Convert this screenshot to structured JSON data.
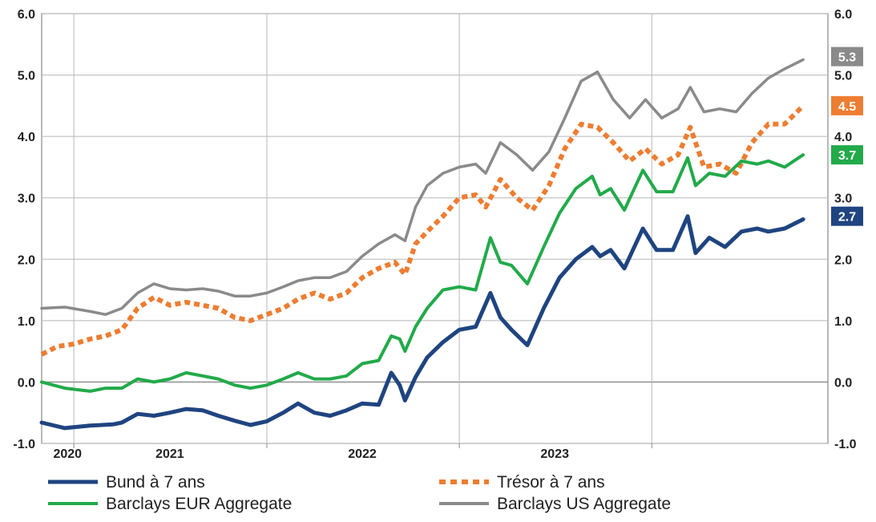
{
  "chart_data": {
    "type": "line",
    "x_axis": {
      "type": "date",
      "range": [
        "2019-11-01",
        "2023-12-01"
      ],
      "tick_labels": [
        "2020",
        "2021",
        "2022",
        "2023"
      ]
    },
    "y_axis_left": {
      "range": [
        -1.0,
        6.0
      ],
      "tick_labels": [
        "6.0",
        "5.0",
        "4.0",
        "3.0",
        "2.0",
        "1.0",
        "0.0",
        "-1.0"
      ]
    },
    "y_axis_right": {
      "range": [
        -1.0,
        6.0
      ],
      "tick_labels": [
        "6.0",
        "5.0",
        "4.0",
        "3.0",
        "2.0",
        "1.0",
        "0.0",
        "-1.0"
      ]
    },
    "grid": true,
    "legend_position": "bottom",
    "series": [
      {
        "name": "Bund à 7 ans",
        "color": "#1f4480",
        "style": "solid",
        "end_label": "2.7",
        "points": [
          [
            "2019-11-01",
            -0.66
          ],
          [
            "2019-12-15",
            -0.75
          ],
          [
            "2020-02-01",
            -0.71
          ],
          [
            "2020-03-15",
            -0.69
          ],
          [
            "2020-04-01",
            -0.66
          ],
          [
            "2020-05-01",
            -0.52
          ],
          [
            "2020-06-01",
            -0.55
          ],
          [
            "2020-07-01",
            -0.5
          ],
          [
            "2020-08-01",
            -0.44
          ],
          [
            "2020-09-01",
            -0.46
          ],
          [
            "2020-10-01",
            -0.55
          ],
          [
            "2020-11-01",
            -0.63
          ],
          [
            "2020-12-01",
            -0.7
          ],
          [
            "2021-01-01",
            -0.64
          ],
          [
            "2021-02-01",
            -0.5
          ],
          [
            "2021-03-01",
            -0.35
          ],
          [
            "2021-04-01",
            -0.5
          ],
          [
            "2021-05-01",
            -0.55
          ],
          [
            "2021-06-01",
            -0.46
          ],
          [
            "2021-07-01",
            -0.35
          ],
          [
            "2021-08-01",
            -0.37
          ],
          [
            "2021-08-25",
            0.15
          ],
          [
            "2021-09-10",
            -0.05
          ],
          [
            "2021-09-20",
            -0.3
          ],
          [
            "2021-10-10",
            0.08
          ],
          [
            "2021-11-01",
            0.4
          ],
          [
            "2021-12-01",
            0.65
          ],
          [
            "2022-01-01",
            0.85
          ],
          [
            "2022-02-01",
            0.9
          ],
          [
            "2022-03-01",
            1.45
          ],
          [
            "2022-03-20",
            1.05
          ],
          [
            "2022-04-10",
            0.85
          ],
          [
            "2022-05-10",
            0.6
          ],
          [
            "2022-06-10",
            1.2
          ],
          [
            "2022-07-10",
            1.7
          ],
          [
            "2022-08-10",
            2.0
          ],
          [
            "2022-09-10",
            2.2
          ],
          [
            "2022-09-25",
            2.05
          ],
          [
            "2022-10-15",
            2.15
          ],
          [
            "2022-11-10",
            1.85
          ],
          [
            "2022-12-15",
            2.5
          ],
          [
            "2023-01-10",
            2.15
          ],
          [
            "2023-02-10",
            2.15
          ],
          [
            "2023-03-10",
            2.7
          ],
          [
            "2023-03-25",
            2.1
          ],
          [
            "2023-04-20",
            2.35
          ],
          [
            "2023-05-20",
            2.2
          ],
          [
            "2023-06-20",
            2.45
          ],
          [
            "2023-07-20",
            2.5
          ],
          [
            "2023-08-10",
            2.45
          ],
          [
            "2023-09-10",
            2.5
          ],
          [
            "2023-10-15",
            2.65
          ]
        ]
      },
      {
        "name": "Trésor à 7 ans",
        "color": "#ed7d31",
        "style": "dotted",
        "end_label": "4.5",
        "points": [
          [
            "2019-11-01",
            0.45
          ],
          [
            "2019-12-01",
            0.58
          ],
          [
            "2020-01-01",
            0.62
          ],
          [
            "2020-02-01",
            0.7
          ],
          [
            "2020-03-01",
            0.75
          ],
          [
            "2020-04-01",
            0.85
          ],
          [
            "2020-05-01",
            1.2
          ],
          [
            "2020-06-01",
            1.38
          ],
          [
            "2020-07-01",
            1.25
          ],
          [
            "2020-08-01",
            1.3
          ],
          [
            "2020-09-01",
            1.25
          ],
          [
            "2020-10-01",
            1.2
          ],
          [
            "2020-11-01",
            1.05
          ],
          [
            "2020-12-01",
            1.0
          ],
          [
            "2021-01-01",
            1.1
          ],
          [
            "2021-02-01",
            1.2
          ],
          [
            "2021-03-01",
            1.35
          ],
          [
            "2021-04-01",
            1.45
          ],
          [
            "2021-05-01",
            1.35
          ],
          [
            "2021-06-01",
            1.45
          ],
          [
            "2021-07-01",
            1.7
          ],
          [
            "2021-08-01",
            1.85
          ],
          [
            "2021-09-01",
            1.95
          ],
          [
            "2021-09-20",
            1.75
          ],
          [
            "2021-10-10",
            2.25
          ],
          [
            "2021-11-01",
            2.45
          ],
          [
            "2021-12-01",
            2.7
          ],
          [
            "2022-01-01",
            3.0
          ],
          [
            "2022-02-01",
            3.05
          ],
          [
            "2022-02-20",
            2.85
          ],
          [
            "2022-03-20",
            3.3
          ],
          [
            "2022-04-20",
            3.0
          ],
          [
            "2022-05-20",
            2.8
          ],
          [
            "2022-06-20",
            3.2
          ],
          [
            "2022-07-20",
            3.8
          ],
          [
            "2022-08-20",
            4.2
          ],
          [
            "2022-09-20",
            4.15
          ],
          [
            "2022-10-20",
            3.9
          ],
          [
            "2022-11-20",
            3.6
          ],
          [
            "2022-12-20",
            3.8
          ],
          [
            "2023-01-20",
            3.55
          ],
          [
            "2023-02-20",
            3.7
          ],
          [
            "2023-03-15",
            4.15
          ],
          [
            "2023-04-10",
            3.5
          ],
          [
            "2023-05-10",
            3.55
          ],
          [
            "2023-06-10",
            3.4
          ],
          [
            "2023-07-10",
            3.9
          ],
          [
            "2023-08-10",
            4.2
          ],
          [
            "2023-09-10",
            4.2
          ],
          [
            "2023-10-15",
            4.5
          ]
        ]
      },
      {
        "name": "Barclays EUR Aggregate",
        "color": "#22aa4a",
        "style": "solid",
        "end_label": "3.7",
        "points": [
          [
            "2019-11-01",
            0.0
          ],
          [
            "2019-12-15",
            -0.1
          ],
          [
            "2020-02-01",
            -0.15
          ],
          [
            "2020-03-01",
            -0.1
          ],
          [
            "2020-04-01",
            -0.1
          ],
          [
            "2020-05-01",
            0.05
          ],
          [
            "2020-06-01",
            0.0
          ],
          [
            "2020-07-01",
            0.05
          ],
          [
            "2020-08-01",
            0.15
          ],
          [
            "2020-09-01",
            0.1
          ],
          [
            "2020-10-01",
            0.05
          ],
          [
            "2020-11-01",
            -0.05
          ],
          [
            "2020-12-01",
            -0.1
          ],
          [
            "2021-01-01",
            -0.05
          ],
          [
            "2021-02-01",
            0.05
          ],
          [
            "2021-03-01",
            0.15
          ],
          [
            "2021-04-01",
            0.05
          ],
          [
            "2021-05-01",
            0.05
          ],
          [
            "2021-06-01",
            0.1
          ],
          [
            "2021-07-01",
            0.3
          ],
          [
            "2021-08-01",
            0.35
          ],
          [
            "2021-08-25",
            0.75
          ],
          [
            "2021-09-10",
            0.7
          ],
          [
            "2021-09-20",
            0.5
          ],
          [
            "2021-10-10",
            0.9
          ],
          [
            "2021-11-01",
            1.2
          ],
          [
            "2021-12-01",
            1.5
          ],
          [
            "2022-01-01",
            1.55
          ],
          [
            "2022-02-01",
            1.5
          ],
          [
            "2022-03-01",
            2.35
          ],
          [
            "2022-03-20",
            1.95
          ],
          [
            "2022-04-10",
            1.9
          ],
          [
            "2022-05-10",
            1.6
          ],
          [
            "2022-06-10",
            2.2
          ],
          [
            "2022-07-10",
            2.75
          ],
          [
            "2022-08-10",
            3.15
          ],
          [
            "2022-09-10",
            3.35
          ],
          [
            "2022-09-25",
            3.05
          ],
          [
            "2022-10-15",
            3.15
          ],
          [
            "2022-11-10",
            2.8
          ],
          [
            "2022-12-15",
            3.45
          ],
          [
            "2023-01-10",
            3.1
          ],
          [
            "2023-02-10",
            3.1
          ],
          [
            "2023-03-10",
            3.65
          ],
          [
            "2023-03-25",
            3.2
          ],
          [
            "2023-04-20",
            3.4
          ],
          [
            "2023-05-20",
            3.35
          ],
          [
            "2023-06-20",
            3.6
          ],
          [
            "2023-07-20",
            3.55
          ],
          [
            "2023-08-10",
            3.6
          ],
          [
            "2023-09-10",
            3.5
          ],
          [
            "2023-10-15",
            3.7
          ]
        ]
      },
      {
        "name": "Barclays US Aggregate",
        "color": "#8a8a8a",
        "style": "solid",
        "end_label": "5.3",
        "points": [
          [
            "2019-11-01",
            1.2
          ],
          [
            "2019-12-15",
            1.22
          ],
          [
            "2020-02-01",
            1.15
          ],
          [
            "2020-03-01",
            1.1
          ],
          [
            "2020-04-01",
            1.2
          ],
          [
            "2020-05-01",
            1.45
          ],
          [
            "2020-06-01",
            1.6
          ],
          [
            "2020-07-01",
            1.52
          ],
          [
            "2020-08-01",
            1.5
          ],
          [
            "2020-09-01",
            1.52
          ],
          [
            "2020-10-01",
            1.48
          ],
          [
            "2020-11-01",
            1.4
          ],
          [
            "2020-12-01",
            1.4
          ],
          [
            "2021-01-01",
            1.45
          ],
          [
            "2021-02-01",
            1.55
          ],
          [
            "2021-03-01",
            1.65
          ],
          [
            "2021-04-01",
            1.7
          ],
          [
            "2021-05-01",
            1.7
          ],
          [
            "2021-06-01",
            1.8
          ],
          [
            "2021-07-01",
            2.05
          ],
          [
            "2021-08-01",
            2.25
          ],
          [
            "2021-09-01",
            2.4
          ],
          [
            "2021-09-20",
            2.3
          ],
          [
            "2021-10-10",
            2.85
          ],
          [
            "2021-11-01",
            3.2
          ],
          [
            "2021-12-01",
            3.4
          ],
          [
            "2022-01-01",
            3.5
          ],
          [
            "2022-02-01",
            3.55
          ],
          [
            "2022-02-20",
            3.4
          ],
          [
            "2022-03-20",
            3.9
          ],
          [
            "2022-04-20",
            3.7
          ],
          [
            "2022-05-20",
            3.45
          ],
          [
            "2022-06-20",
            3.75
          ],
          [
            "2022-07-20",
            4.3
          ],
          [
            "2022-08-20",
            4.9
          ],
          [
            "2022-09-20",
            5.05
          ],
          [
            "2022-10-20",
            4.6
          ],
          [
            "2022-11-20",
            4.3
          ],
          [
            "2022-12-20",
            4.6
          ],
          [
            "2023-01-20",
            4.3
          ],
          [
            "2023-02-20",
            4.45
          ],
          [
            "2023-03-15",
            4.8
          ],
          [
            "2023-04-10",
            4.4
          ],
          [
            "2023-05-10",
            4.45
          ],
          [
            "2023-06-10",
            4.4
          ],
          [
            "2023-07-10",
            4.7
          ],
          [
            "2023-08-10",
            4.95
          ],
          [
            "2023-09-10",
            5.1
          ],
          [
            "2023-10-15",
            5.25
          ]
        ]
      }
    ]
  }
}
